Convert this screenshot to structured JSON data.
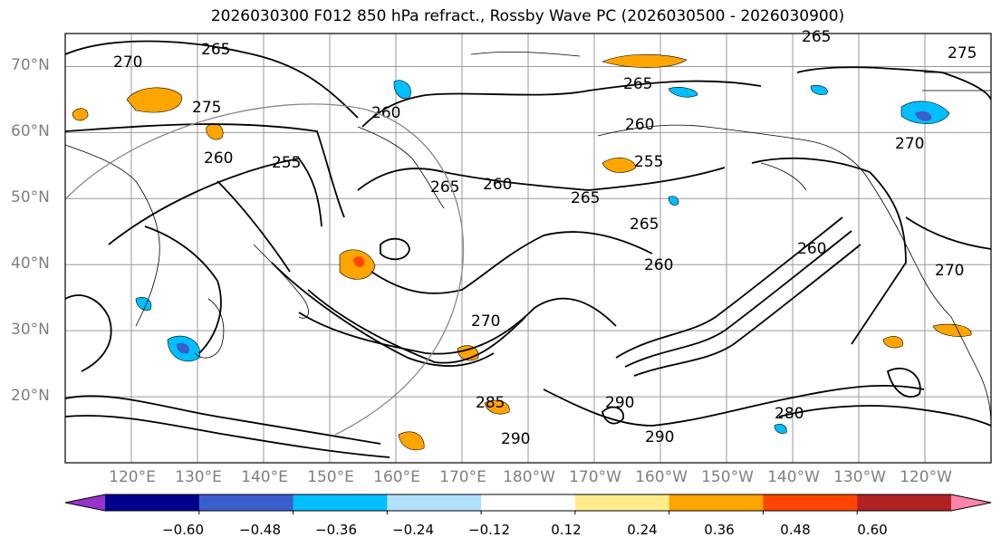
{
  "title": "2026030300 F012 850 hPa refract., Rossby Wave PC (2026030500 - 2026030900)",
  "map": {
    "projection": "cylindrical",
    "lon_range": [
      110,
      250
    ],
    "lat_range": [
      10,
      75
    ],
    "lat_labels": [
      "20°N",
      "30°N",
      "40°N",
      "50°N",
      "60°N",
      "70°N"
    ],
    "lon_labels": [
      "120°E",
      "130°E",
      "140°E",
      "150°E",
      "160°E",
      "170°E",
      "180°W",
      "170°W",
      "160°W",
      "150°W",
      "140°W",
      "130°W",
      "120°W"
    ],
    "gridlines": true,
    "coastlines": true
  },
  "contours": {
    "field": "850 hPa refractivity",
    "color": "#000000",
    "labels": [
      "265",
      "270",
      "275",
      "260",
      "255",
      "265",
      "260",
      "265",
      "265",
      "260",
      "255",
      "260",
      "265",
      "260",
      "270",
      "275",
      "270",
      "265",
      "260",
      "270",
      "290",
      "280",
      "290",
      "285",
      "290"
    ]
  },
  "shading": {
    "field": "Rossby Wave PC",
    "colorbar": {
      "extend": "both",
      "levels": [
        "−0.60",
        "−0.48",
        "−0.36",
        "−0.24",
        "−0.12",
        "0.12",
        "0.24",
        "0.36",
        "0.48",
        "0.60"
      ],
      "colors": [
        "#9932cc",
        "#00008b",
        "#3a5fcd",
        "#00bfff",
        "#b0e2ff",
        "#ffffff",
        "#ffec8b",
        "#ffa500",
        "#ff4500",
        "#b22222",
        "#ff82ab"
      ]
    }
  }
}
